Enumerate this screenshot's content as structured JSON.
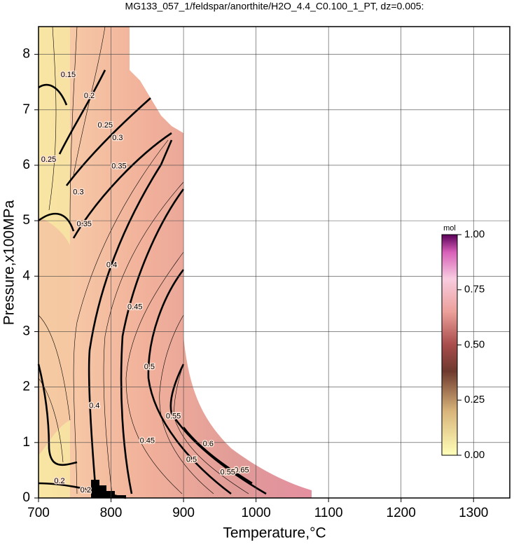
{
  "chart_data": {
    "type": "contour",
    "title": "MG133_057_1/feldspar/anorthite/H2O_4.4_C0.100_1_PT, dz=0.005:",
    "x_label": "Temperature,°C",
    "y_label": "Pressure,x100MPa",
    "xlim": [
      700,
      1350
    ],
    "ylim": [
      0,
      8.5
    ],
    "xticks": [
      700,
      800,
      900,
      1000,
      1100,
      1200,
      1300
    ],
    "yticks": [
      0,
      1,
      2,
      3,
      4,
      5,
      6,
      7,
      8
    ],
    "grid": true,
    "contour_labels": [
      {
        "x": 801,
        "y": 4.2,
        "value": 0.4
      },
      {
        "x": 833,
        "y": 3.44,
        "value": 0.45
      },
      {
        "x": 853,
        "y": 2.36,
        "value": 0.5
      },
      {
        "x": 886,
        "y": 1.47,
        "value": 0.55
      },
      {
        "x": 934,
        "y": 0.97,
        "value": 0.6
      },
      {
        "x": 980,
        "y": 0.5,
        "value": 0.65
      },
      {
        "x": 911,
        "y": 0.69,
        "value": 0.5
      },
      {
        "x": 961,
        "y": 0.46,
        "value": 0.55
      },
      {
        "x": 850,
        "y": 1.03,
        "value": 0.45
      },
      {
        "x": 777,
        "y": 1.66,
        "value": 0.4
      },
      {
        "x": 763,
        "y": 4.94,
        "value": 0.35
      },
      {
        "x": 755,
        "y": 5.51,
        "value": 0.3
      },
      {
        "x": 811,
        "y": 5.98,
        "value": 0.35
      },
      {
        "x": 809,
        "y": 6.49,
        "value": 0.3
      },
      {
        "x": 792,
        "y": 6.72,
        "value": 0.25
      },
      {
        "x": 770,
        "y": 7.25,
        "value": 0.2
      },
      {
        "x": 741,
        "y": 7.63,
        "value": 0.15
      },
      {
        "x": 714,
        "y": 6.1,
        "value": 0.25
      },
      {
        "x": 729,
        "y": 0.3,
        "value": 0.2
      },
      {
        "x": 765,
        "y": 0.14,
        "value": 0.2
      }
    ],
    "colorbar": {
      "label": "mol",
      "lim": [
        0,
        1
      ],
      "ticks": [
        {
          "value": 0,
          "label": "0.00"
        },
        {
          "value": 0.25,
          "label": "0.25"
        },
        {
          "value": 0.5,
          "label": "0.50"
        },
        {
          "value": 0.75,
          "label": "0.75"
        },
        {
          "value": 1,
          "label": "1.00"
        }
      ]
    }
  }
}
